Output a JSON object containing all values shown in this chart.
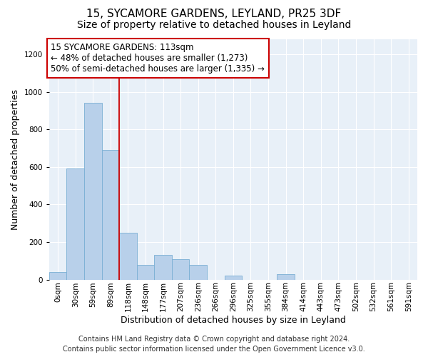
{
  "title_line1": "15, SYCAMORE GARDENS, LEYLAND, PR25 3DF",
  "title_line2": "Size of property relative to detached houses in Leyland",
  "xlabel": "Distribution of detached houses by size in Leyland",
  "ylabel": "Number of detached properties",
  "categories": [
    "0sqm",
    "30sqm",
    "59sqm",
    "89sqm",
    "118sqm",
    "148sqm",
    "177sqm",
    "207sqm",
    "236sqm",
    "266sqm",
    "296sqm",
    "325sqm",
    "355sqm",
    "384sqm",
    "414sqm",
    "443sqm",
    "473sqm",
    "502sqm",
    "532sqm",
    "561sqm",
    "591sqm"
  ],
  "bar_values": [
    40,
    590,
    940,
    690,
    250,
    80,
    130,
    110,
    80,
    0,
    20,
    0,
    0,
    30,
    0,
    0,
    0,
    0,
    0,
    0,
    0
  ],
  "bar_color": "#b8d0ea",
  "bar_edge_color": "#7aafd4",
  "background_color": "#e8f0f8",
  "ylim": [
    0,
    1280
  ],
  "yticks": [
    0,
    200,
    400,
    600,
    800,
    1000,
    1200
  ],
  "property_line_x": 3.5,
  "annotation_text": "15 SYCAMORE GARDENS: 113sqm\n← 48% of detached houses are smaller (1,273)\n50% of semi-detached houses are larger (1,335) →",
  "annotation_box_color": "#ffffff",
  "annotation_box_edge": "#cc0000",
  "vline_color": "#cc0000",
  "footer_line1": "Contains HM Land Registry data © Crown copyright and database right 2024.",
  "footer_line2": "Contains public sector information licensed under the Open Government Licence v3.0.",
  "title_fontsize": 11,
  "subtitle_fontsize": 10,
  "axis_label_fontsize": 9,
  "tick_fontsize": 7.5,
  "annotation_fontsize": 8.5,
  "footer_fontsize": 7
}
